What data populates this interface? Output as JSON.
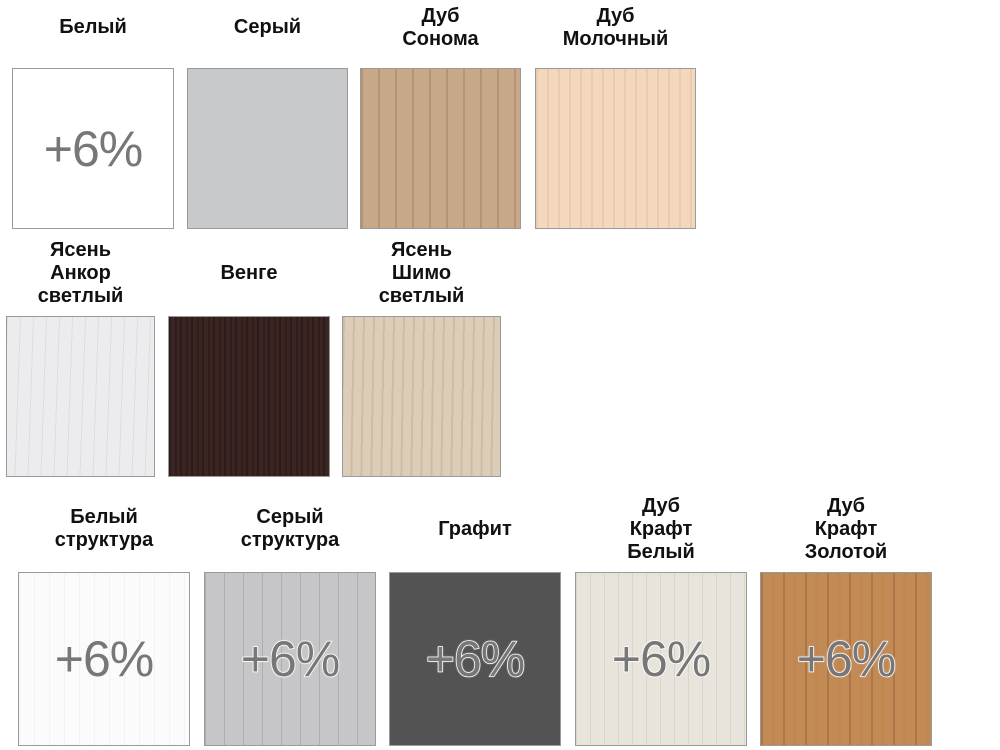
{
  "swatches": [
    {
      "label": [
        "Белый"
      ],
      "badge": "+6%",
      "color": "#ffffff"
    },
    {
      "label": [
        "Серый"
      ],
      "badge": "",
      "color": "#c8c9cb"
    },
    {
      "label": [
        "Дуб",
        "Сонома"
      ],
      "badge": "",
      "color": "#c7a888"
    },
    {
      "label": [
        "Дуб",
        "Молочный"
      ],
      "badge": "",
      "color": "#f3d8bd"
    },
    {
      "label": [
        "Ясень",
        "Анкор",
        "светлый"
      ],
      "badge": "",
      "color": "#ecebee"
    },
    {
      "label": [
        "Венге"
      ],
      "badge": "",
      "color": "#3a2522"
    },
    {
      "label": [
        "Ясень",
        "Шимо",
        "светлый"
      ],
      "badge": "",
      "color": "#dccdb8"
    },
    {
      "label": [
        "Белый",
        "структура"
      ],
      "badge": "+6%",
      "color": "#fbfbfb"
    },
    {
      "label": [
        "Серый",
        "структура"
      ],
      "badge": "+6%",
      "color": "#c6c6c8"
    },
    {
      "label": [
        "Графит"
      ],
      "badge": "+6%",
      "color": "#535353"
    },
    {
      "label": [
        "Дуб",
        "Крафт",
        "Белый"
      ],
      "badge": "+6%",
      "color": "#e8e4dc"
    },
    {
      "label": [
        "Дуб",
        "Крафт",
        "Золотой"
      ],
      "badge": "+6%",
      "color": "#c28a55"
    }
  ]
}
